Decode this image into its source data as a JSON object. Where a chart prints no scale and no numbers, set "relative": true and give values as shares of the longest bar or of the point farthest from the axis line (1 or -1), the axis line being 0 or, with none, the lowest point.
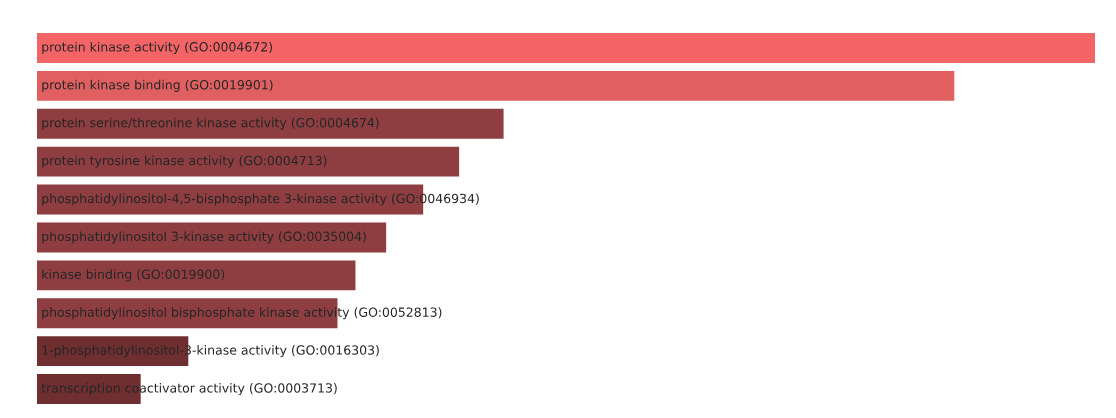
{
  "chart_data": {
    "type": "bar",
    "orientation": "horizontal",
    "relative": true,
    "categories": [
      "protein kinase activity (GO:0004672)",
      "protein kinase binding (GO:0019901)",
      "protein serine/threonine kinase activity (GO:0004674)",
      "protein tyrosine kinase activity (GO:0004713)",
      "phosphatidylinositol-4,5-bisphosphate 3-kinase activity (GO:0046934)",
      "phosphatidylinositol 3-kinase activity (GO:0035004)",
      "kinase binding (GO:0019900)",
      "phosphatidylinositol bisphosphate kinase activity (GO:0052813)",
      "1-phosphatidylinositol-3-kinase activity (GO:0016303)",
      "transcription coactivator activity (GO:0003713)"
    ],
    "values": [
      1,
      0.867,
      0.441,
      0.399,
      0.365,
      0.33,
      0.301,
      0.284,
      0.143,
      0.098
    ],
    "colors": [
      "#f36466",
      "#e06062",
      "#8e3d40",
      "#8e3d40",
      "#8e3d40",
      "#8e3d40",
      "#8e3d40",
      "#8e3d40",
      "#6f2e30",
      "#6f2e30"
    ]
  }
}
